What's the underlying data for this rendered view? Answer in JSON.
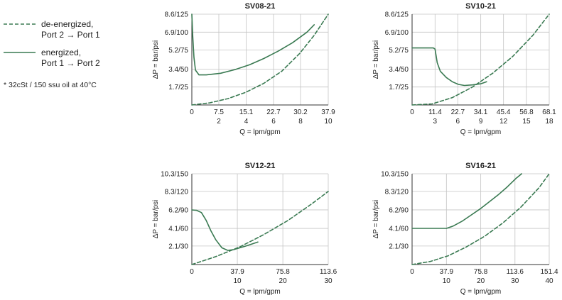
{
  "legend": {
    "deenergized_line1": "de-energized,",
    "deenergized_line2": "Port 2 → Port 1",
    "energized_line1": "energized,",
    "energized_line2": "Port 1 → Port 2",
    "note": "* 32cSt / 150 ssu oil at 40°C",
    "line_color": "#3a7a52"
  },
  "chart_data": [
    {
      "type": "line",
      "title": "SV08-21",
      "ylabel": "ΔP = bar/psi",
      "xlabel": "Q = lpm/gpm",
      "xlim": [
        0,
        37.9
      ],
      "ylim": [
        0,
        8.6
      ],
      "grid": true,
      "x_ticks": [
        0,
        7.5,
        15.1,
        22.7,
        30.2,
        37.9
      ],
      "x_tick_labels": [
        "0",
        "7.5",
        "15.1",
        "22.7",
        "30.2",
        "37.9"
      ],
      "x_tick_labels_secondary": [
        "",
        "2",
        "4",
        "6",
        "8",
        "10"
      ],
      "y_ticks": [
        1.7,
        3.4,
        5.2,
        6.9,
        8.6
      ],
      "y_tick_labels": [
        "1.7/25",
        "3.4/50",
        "5.2/75",
        "6.9/100",
        "8.6/125"
      ],
      "series": [
        {
          "style": "dashed",
          "x": [
            0,
            5,
            10,
            15,
            20,
            25,
            30,
            34,
            37.9
          ],
          "y": [
            0,
            0.2,
            0.6,
            1.2,
            2.05,
            3.2,
            4.9,
            6.6,
            8.6
          ]
        },
        {
          "style": "solid",
          "x": [
            0,
            0.25,
            0.6,
            1,
            2,
            4,
            8,
            12,
            16,
            20,
            24,
            28,
            32,
            34
          ],
          "y": [
            8.6,
            6.5,
            4.5,
            3.3,
            2.85,
            2.85,
            3.0,
            3.35,
            3.8,
            4.4,
            5.1,
            5.9,
            6.9,
            7.6
          ]
        }
      ]
    },
    {
      "type": "line",
      "title": "SV10-21",
      "ylabel": "ΔP = bar/psi",
      "xlabel": "Q = lpm/gpm",
      "xlim": [
        0,
        68.1
      ],
      "ylim": [
        0,
        8.6
      ],
      "grid": true,
      "x_ticks": [
        0,
        11.4,
        22.7,
        34.1,
        45.4,
        56.8,
        68.1
      ],
      "x_tick_labels": [
        "0",
        "11.4",
        "22.7",
        "34.1",
        "45.4",
        "56.8",
        "68.1"
      ],
      "x_tick_labels_secondary": [
        "",
        "3",
        "6",
        "9",
        "12",
        "15",
        "18"
      ],
      "y_ticks": [
        1.7,
        3.4,
        5.2,
        6.9,
        8.6
      ],
      "y_tick_labels": [
        "1.7/25",
        "3.4/50",
        "5.2/75",
        "6.9/100",
        "8.6/125"
      ],
      "series": [
        {
          "style": "dashed",
          "x": [
            0,
            10,
            20,
            30,
            40,
            50,
            60,
            68.1
          ],
          "y": [
            0,
            0.1,
            0.7,
            1.7,
            3.0,
            4.6,
            6.6,
            8.6
          ]
        },
        {
          "style": "solid",
          "x": [
            0,
            10.5,
            11.4,
            12.5,
            14,
            17,
            20,
            23,
            26,
            30,
            34,
            37
          ],
          "y": [
            5.4,
            5.4,
            5.3,
            4.0,
            3.2,
            2.6,
            2.2,
            1.95,
            1.85,
            1.9,
            2.0,
            2.2
          ]
        }
      ]
    },
    {
      "type": "line",
      "title": "SV12-21",
      "ylabel": "ΔP = bar/psi",
      "xlabel": "Q = lpm/gpm",
      "xlim": [
        0,
        113.6
      ],
      "ylim": [
        0,
        10.3
      ],
      "grid": true,
      "x_ticks": [
        0,
        37.9,
        75.8,
        113.6
      ],
      "x_tick_labels": [
        "0",
        "37.9",
        "75.8",
        "113.6"
      ],
      "x_tick_labels_secondary": [
        "",
        "10",
        "20",
        "30"
      ],
      "y_ticks": [
        2.1,
        4.1,
        6.2,
        8.3,
        10.3
      ],
      "y_tick_labels": [
        "2.1/30",
        "4.1/60",
        "6.2/90",
        "8.3/120",
        "10.3/150"
      ],
      "series": [
        {
          "style": "dashed",
          "x": [
            0,
            20,
            40,
            60,
            80,
            100,
            113.6
          ],
          "y": [
            0,
            0.9,
            2.0,
            3.4,
            5.0,
            6.9,
            8.3
          ]
        },
        {
          "style": "solid",
          "x": [
            0,
            4,
            8,
            12,
            16,
            20,
            25,
            30,
            35,
            45,
            55
          ],
          "y": [
            6.2,
            6.15,
            5.9,
            5.0,
            3.8,
            2.8,
            1.9,
            1.6,
            1.7,
            2.1,
            2.55
          ]
        }
      ]
    },
    {
      "type": "line",
      "title": "SV16-21",
      "ylabel": "ΔP = bar/psi",
      "xlabel": "Q = lpm/gpm",
      "xlim": [
        0,
        151.4
      ],
      "ylim": [
        0,
        10.3
      ],
      "grid": true,
      "x_ticks": [
        0,
        37.9,
        75.8,
        113.6,
        151.4
      ],
      "x_tick_labels": [
        "0",
        "37.9",
        "75.8",
        "113.6",
        "151.4"
      ],
      "x_tick_labels_secondary": [
        "",
        "10",
        "20",
        "30",
        "40"
      ],
      "y_ticks": [
        2.1,
        4.1,
        6.2,
        8.3,
        10.3
      ],
      "y_tick_labels": [
        "2.1/30",
        "4.1/60",
        "6.2/90",
        "8.3/120",
        "10.3/150"
      ],
      "series": [
        {
          "style": "dashed",
          "x": [
            0,
            20,
            40,
            60,
            80,
            100,
            120,
            140,
            151.4
          ],
          "y": [
            0,
            0.35,
            1.0,
            2.0,
            3.2,
            4.7,
            6.5,
            8.7,
            10.3
          ]
        },
        {
          "style": "solid",
          "x": [
            0,
            38,
            45,
            55,
            65,
            75,
            85,
            95,
            105,
            115,
            121
          ],
          "y": [
            4.1,
            4.1,
            4.35,
            4.9,
            5.6,
            6.3,
            7.1,
            7.9,
            8.8,
            9.8,
            10.3
          ]
        }
      ]
    }
  ]
}
